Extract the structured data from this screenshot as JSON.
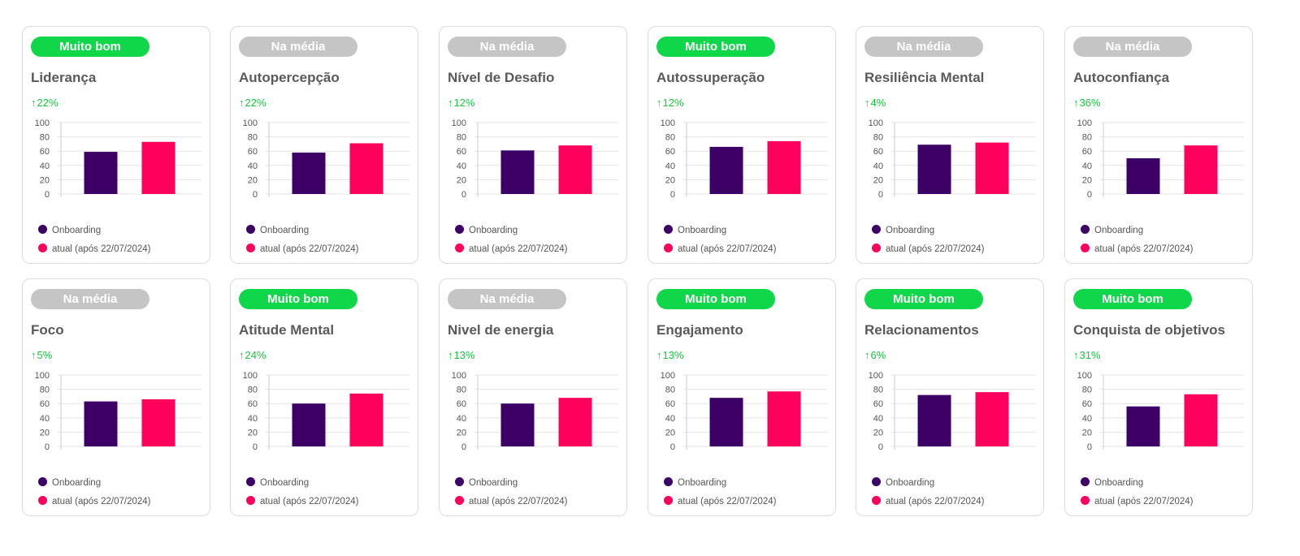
{
  "colors": {
    "onboarding": "#3d0067",
    "current": "#ff005c",
    "badge_good": "#10d64a",
    "badge_average": "#c5c5c5",
    "delta": "#14c83c"
  },
  "legend": {
    "onboarding_label": "Onboarding",
    "current_label": "atual (após 22/07/2024)"
  },
  "chart_data": [
    {
      "type": "bar",
      "badge": "Muito bom",
      "badge_level": "good",
      "title": "Liderança",
      "delta": "22%",
      "categories": [
        "Onboarding",
        "atual (após 22/07/2024)"
      ],
      "values": [
        59,
        73
      ],
      "ylim": [
        0,
        100
      ],
      "yticks": [
        "100",
        "80",
        "60",
        "40",
        "20",
        "0"
      ],
      "grid": true
    },
    {
      "type": "bar",
      "badge": "Na média",
      "badge_level": "average",
      "title": "Autopercepção",
      "delta": "22%",
      "categories": [
        "Onboarding",
        "atual (após 22/07/2024)"
      ],
      "values": [
        58,
        71
      ],
      "ylim": [
        0,
        100
      ],
      "yticks": [
        "100",
        "80",
        "60",
        "40",
        "20",
        "0"
      ],
      "grid": true
    },
    {
      "type": "bar",
      "badge": "Na média",
      "badge_level": "average",
      "title": "Nível de Desafio",
      "delta": "12%",
      "categories": [
        "Onboarding",
        "atual (após 22/07/2024)"
      ],
      "values": [
        61,
        68
      ],
      "ylim": [
        0,
        100
      ],
      "yticks": [
        "100",
        "80",
        "60",
        "40",
        "20",
        "0"
      ],
      "grid": true
    },
    {
      "type": "bar",
      "badge": "Muito bom",
      "badge_level": "good",
      "title": "Autossuperação",
      "delta": "12%",
      "categories": [
        "Onboarding",
        "atual (após 22/07/2024)"
      ],
      "values": [
        66,
        74
      ],
      "ylim": [
        0,
        100
      ],
      "yticks": [
        "100",
        "80",
        "60",
        "40",
        "20",
        "0"
      ],
      "grid": true
    },
    {
      "type": "bar",
      "badge": "Na média",
      "badge_level": "average",
      "title": "Resiliência Mental",
      "delta": "4%",
      "categories": [
        "Onboarding",
        "atual (após 22/07/2024)"
      ],
      "values": [
        69,
        72
      ],
      "ylim": [
        0,
        100
      ],
      "yticks": [
        "100",
        "80",
        "60",
        "40",
        "20",
        "0"
      ],
      "grid": true
    },
    {
      "type": "bar",
      "badge": "Na média",
      "badge_level": "average",
      "title": "Autoconfiança",
      "delta": "36%",
      "categories": [
        "Onboarding",
        "atual (após 22/07/2024)"
      ],
      "values": [
        50,
        68
      ],
      "ylim": [
        0,
        100
      ],
      "yticks": [
        "100",
        "80",
        "60",
        "40",
        "20",
        "0"
      ],
      "grid": true
    },
    {
      "type": "bar",
      "badge": "Na média",
      "badge_level": "average",
      "title": "Foco",
      "delta": "5%",
      "categories": [
        "Onboarding",
        "atual (após 22/07/2024)"
      ],
      "values": [
        63,
        66
      ],
      "ylim": [
        0,
        100
      ],
      "yticks": [
        "100",
        "80",
        "60",
        "40",
        "20",
        "0"
      ],
      "grid": true
    },
    {
      "type": "bar",
      "badge": "Muito bom",
      "badge_level": "good",
      "title": "Atitude Mental",
      "delta": "24%",
      "categories": [
        "Onboarding",
        "atual (após 22/07/2024)"
      ],
      "values": [
        60,
        74
      ],
      "ylim": [
        0,
        100
      ],
      "yticks": [
        "100",
        "80",
        "60",
        "40",
        "20",
        "0"
      ],
      "grid": true
    },
    {
      "type": "bar",
      "badge": "Na média",
      "badge_level": "average",
      "title": "Nivel de energia",
      "delta": "13%",
      "categories": [
        "Onboarding",
        "atual (após 22/07/2024)"
      ],
      "values": [
        60,
        68
      ],
      "ylim": [
        0,
        100
      ],
      "yticks": [
        "100",
        "80",
        "60",
        "40",
        "20",
        "0"
      ],
      "grid": true
    },
    {
      "type": "bar",
      "badge": "Muito bom",
      "badge_level": "good",
      "title": "Engajamento",
      "delta": "13%",
      "categories": [
        "Onboarding",
        "atual (após 22/07/2024)"
      ],
      "values": [
        68,
        77
      ],
      "ylim": [
        0,
        100
      ],
      "yticks": [
        "100",
        "80",
        "60",
        "40",
        "20",
        "0"
      ],
      "grid": true
    },
    {
      "type": "bar",
      "badge": "Muito bom",
      "badge_level": "good",
      "title": "Relacionamentos",
      "delta": "6%",
      "categories": [
        "Onboarding",
        "atual (após 22/07/2024)"
      ],
      "values": [
        72,
        76
      ],
      "ylim": [
        0,
        100
      ],
      "yticks": [
        "100",
        "80",
        "60",
        "40",
        "20",
        "0"
      ],
      "grid": true
    },
    {
      "type": "bar",
      "badge": "Muito bom",
      "badge_level": "good",
      "title": "Conquista de objetivos",
      "delta": "31%",
      "categories": [
        "Onboarding",
        "atual (após 22/07/2024)"
      ],
      "values": [
        56,
        73
      ],
      "ylim": [
        0,
        100
      ],
      "yticks": [
        "100",
        "80",
        "60",
        "40",
        "20",
        "0"
      ],
      "grid": true
    }
  ]
}
